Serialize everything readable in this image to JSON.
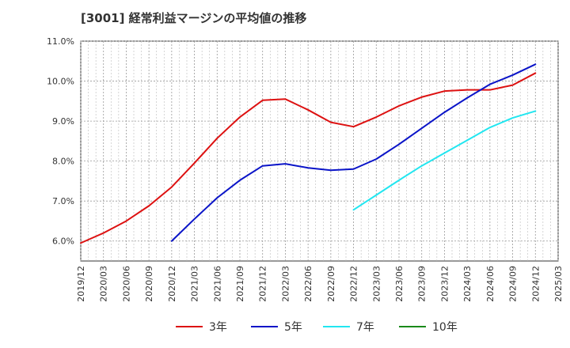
{
  "chart_data": {
    "type": "line",
    "title": "[3001]  経常利益マージンの平均値の推移",
    "xlabel": "",
    "ylabel": "",
    "ylim": [
      5.5,
      11.0
    ],
    "yticks": [
      "6.0%",
      "7.0%",
      "8.0%",
      "9.0%",
      "10.0%",
      "11.0%"
    ],
    "ytick_values": [
      6.0,
      7.0,
      8.0,
      9.0,
      10.0,
      11.0
    ],
    "x_categories": [
      "2019/12",
      "2020/03",
      "2020/06",
      "2020/09",
      "2020/12",
      "2021/03",
      "2021/06",
      "2021/09",
      "2021/12",
      "2022/03",
      "2022/06",
      "2022/09",
      "2022/12",
      "2023/03",
      "2023/06",
      "2023/09",
      "2023/12",
      "2024/03",
      "2024/06",
      "2024/09",
      "2024/12",
      "2025/03"
    ],
    "grid": true,
    "legend_position": "bottom",
    "series": [
      {
        "name": "3年",
        "color": "#dd1111",
        "start_index": 0,
        "values": [
          5.95,
          6.2,
          6.5,
          6.88,
          7.35,
          7.95,
          8.57,
          9.1,
          9.52,
          9.55,
          9.28,
          8.97,
          8.86,
          9.1,
          9.38,
          9.6,
          9.75,
          9.78,
          9.78,
          9.9,
          10.2
        ]
      },
      {
        "name": "5年",
        "color": "#0a14c8",
        "start_index": 4,
        "values": [
          6.0,
          6.55,
          7.08,
          7.52,
          7.88,
          7.93,
          7.83,
          7.77,
          7.8,
          8.05,
          8.42,
          8.82,
          9.22,
          9.58,
          9.92,
          10.15,
          10.42
        ]
      },
      {
        "name": "7年",
        "color": "#22e6f0",
        "start_index": 12,
        "values": [
          6.78,
          7.15,
          7.52,
          7.88,
          8.2,
          8.52,
          8.84,
          9.08,
          9.25
        ]
      },
      {
        "name": "10年",
        "color": "#1a8a1a",
        "start_index": 0,
        "values": []
      }
    ]
  }
}
